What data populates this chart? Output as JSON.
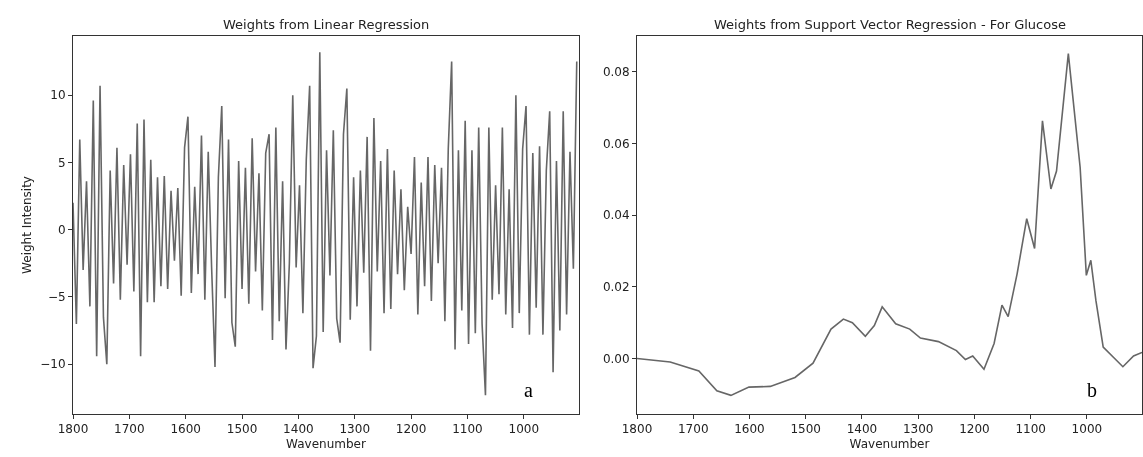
{
  "chart_data": [
    {
      "type": "line",
      "title": "Weights from Linear Regression",
      "xlabel": "Wavenumber",
      "ylabel": "Weight Intensity",
      "annotations": [
        "a"
      ],
      "grid": false,
      "marker": "none",
      "line_style": "solid",
      "xlim": [
        1800,
        902
      ],
      "xticks": [
        1800,
        1700,
        1600,
        1500,
        1400,
        1300,
        1200,
        1100,
        1000
      ],
      "ylim": [
        -13.7,
        14.4
      ],
      "yticks": [
        {
          "value": -10,
          "label": "−10"
        },
        {
          "value": -5,
          "label": "−5"
        },
        0,
        5,
        10
      ],
      "series": [
        {
          "color": "#666666",
          "x": [
            1800,
            1794,
            1788,
            1782,
            1776,
            1770,
            1764,
            1758,
            1752,
            1746,
            1740,
            1734,
            1728,
            1722,
            1716,
            1710,
            1704,
            1698,
            1692,
            1686,
            1680,
            1674,
            1668,
            1662,
            1656,
            1650,
            1644,
            1638,
            1632,
            1626,
            1620,
            1614,
            1608,
            1602,
            1596,
            1590,
            1584,
            1578,
            1572,
            1566,
            1560,
            1554,
            1548,
            1542,
            1536,
            1530,
            1524,
            1518,
            1512,
            1506,
            1500,
            1494,
            1488,
            1482,
            1476,
            1470,
            1464,
            1458,
            1452,
            1446,
            1440,
            1434,
            1428,
            1422,
            1416,
            1410,
            1404,
            1398,
            1392,
            1386,
            1380,
            1374,
            1368,
            1362,
            1356,
            1350,
            1344,
            1338,
            1332,
            1326,
            1320,
            1314,
            1308,
            1302,
            1296,
            1290,
            1284,
            1278,
            1272,
            1266,
            1260,
            1254,
            1248,
            1242,
            1236,
            1230,
            1224,
            1218,
            1212,
            1206,
            1200,
            1194,
            1188,
            1182,
            1176,
            1170,
            1164,
            1158,
            1152,
            1146,
            1140,
            1134,
            1128,
            1122,
            1116,
            1110,
            1104,
            1098,
            1092,
            1086,
            1080,
            1074,
            1068,
            1062,
            1056,
            1050,
            1044,
            1038,
            1032,
            1026,
            1020,
            1014,
            1008,
            1002,
            996,
            990,
            984,
            978,
            972,
            966,
            960,
            954,
            948,
            942,
            936,
            930,
            924,
            918,
            912,
            906
          ],
          "values": [
            2,
            -7,
            6.7,
            -3,
            3.6,
            -5.7,
            9.6,
            -9.4,
            10.7,
            -6.5,
            -10,
            4.4,
            -4,
            6.1,
            -5.2,
            4.8,
            -2.6,
            5.6,
            -4.6,
            7.9,
            -9.4,
            8.2,
            -5.4,
            5.2,
            -5.4,
            3.9,
            -4.2,
            4,
            -4.4,
            2.9,
            -2.3,
            3.1,
            -4.9,
            6.1,
            8.4,
            -4.7,
            3.2,
            -3.3,
            7,
            -5.2,
            5.8,
            -2.8,
            -10.2,
            3.9,
            9.2,
            -5.1,
            6.7,
            -6.9,
            -8.7,
            5.1,
            -4.4,
            4.6,
            -5.5,
            6.8,
            -3.1,
            4.2,
            -6,
            5.7,
            7.1,
            -8.2,
            7.6,
            -6.8,
            3.6,
            -8.9,
            -2.5,
            10,
            -2.8,
            3.3,
            -6.2,
            5.2,
            10.7,
            -10.3,
            -7.9,
            13.2,
            -7.6,
            5.9,
            -3.4,
            7.4,
            -6.6,
            -8.4,
            7.1,
            10.5,
            -6.7,
            3.9,
            -5.7,
            4.4,
            -3.2,
            6.9,
            -9,
            8.3,
            -3.1,
            5.1,
            -6.2,
            6,
            -5.9,
            4.4,
            -3.3,
            3,
            -4.5,
            1.7,
            -1.8,
            5.4,
            -6.3,
            3.5,
            -4.2,
            5.4,
            -5.3,
            4.8,
            -2.5,
            4.6,
            -6.8,
            6,
            12.5,
            -8.9,
            5.9,
            -6,
            8.1,
            -8.5,
            5.9,
            -7.7,
            7.6,
            -7,
            -12.3,
            7.6,
            -5.2,
            3.3,
            -4.8,
            7.6,
            -6.3,
            3,
            -7.3,
            10,
            -6.2,
            6,
            9.2,
            -7.8,
            5.7,
            -5.8,
            6.2,
            -7.8,
            4.4,
            8.8,
            -10.6,
            5.1,
            -7.5,
            8.8,
            -6.3,
            5.8,
            -2.9,
            12.5
          ]
        }
      ]
    },
    {
      "type": "line",
      "title": "Weights from Support Vector Regression - For Glucose",
      "xlabel": "Wavenumber",
      "annotations": [
        "b"
      ],
      "grid": false,
      "marker": "none",
      "line_style": "solid",
      "xlim": [
        1800,
        902
      ],
      "xticks": [
        1800,
        1700,
        1600,
        1500,
        1400,
        1300,
        1200,
        1100,
        1000
      ],
      "ylim": [
        -0.0155,
        0.09
      ],
      "yticks": [
        {
          "value": 0,
          "label": "0.00"
        },
        {
          "value": 0.02,
          "label": "0.02"
        },
        {
          "value": 0.04,
          "label": "0.04"
        },
        {
          "value": 0.06,
          "label": "0.06"
        },
        {
          "value": 0.08,
          "label": "0.08"
        }
      ],
      "series": [
        {
          "color": "#666666",
          "x": [
            1800,
            1741,
            1690,
            1658,
            1633,
            1601,
            1563,
            1519,
            1487,
            1455,
            1433,
            1417,
            1394,
            1378,
            1364,
            1340,
            1315,
            1296,
            1264,
            1232,
            1216,
            1203,
            1183,
            1165,
            1151,
            1140,
            1124,
            1107,
            1093,
            1079,
            1064,
            1054,
            1033,
            1012,
            1001,
            993,
            984,
            971,
            936,
            917,
            902
          ],
          "values": [
            0,
            -0.001,
            -0.0035,
            -0.009,
            -0.0103,
            -0.008,
            -0.0078,
            -0.0053,
            -0.0013,
            0.0082,
            0.011,
            0.01,
            0.0062,
            0.0092,
            0.0144,
            0.0097,
            0.0082,
            0.0057,
            0.0047,
            0.0022,
            -0.0003,
            0.0007,
            -0.003,
            0.0042,
            0.0149,
            0.0117,
            0.0237,
            0.039,
            0.0307,
            0.0663,
            0.0473,
            0.0523,
            0.0851,
            0.0533,
            0.0232,
            0.0274,
            0.0162,
            0.0032,
            -0.0023,
            0.0007,
            0.0017
          ]
        }
      ]
    }
  ]
}
